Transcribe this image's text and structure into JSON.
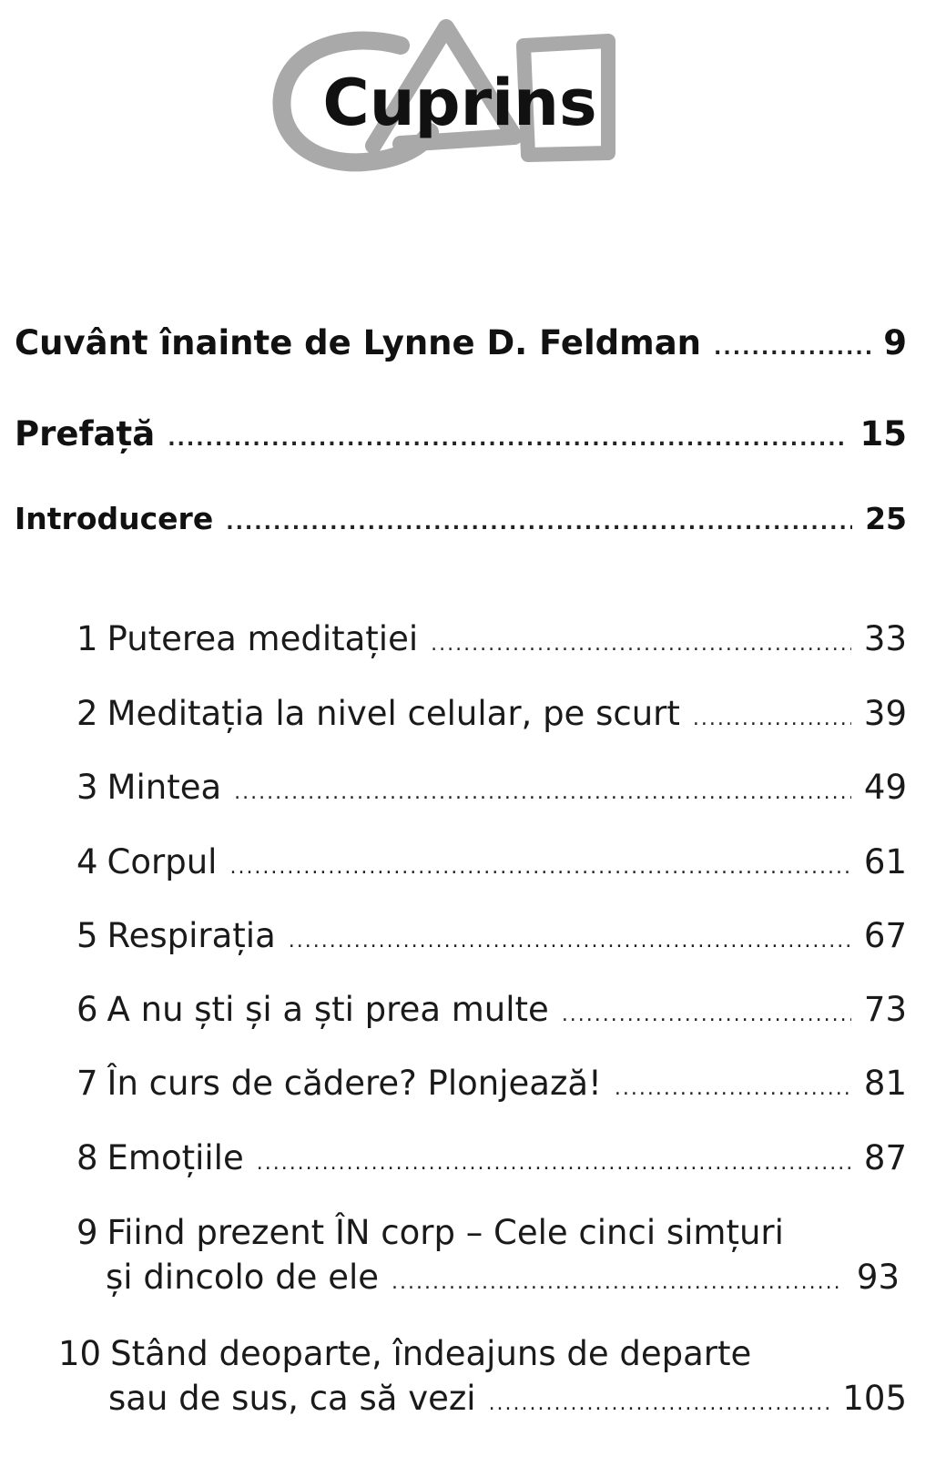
{
  "title": "Cuprins",
  "front_matter": [
    {
      "label": "Cuvânt înainte de Lynne D. Feldman",
      "page": "9"
    },
    {
      "label": "Prefață",
      "page": "15"
    },
    {
      "label": "Introducere",
      "page": "25"
    }
  ],
  "chapters": [
    {
      "number": "1",
      "title": "Puterea meditației",
      "page": "33"
    },
    {
      "number": "2",
      "title": "Meditația la nivel celular, pe scurt",
      "page": "39"
    },
    {
      "number": "3",
      "title": "Mintea",
      "page": "49"
    },
    {
      "number": "4",
      "title": "Corpul",
      "page": "61"
    },
    {
      "number": "5",
      "title": "Respirația",
      "page": "67"
    },
    {
      "number": "6",
      "title": "A nu ști și a ști prea multe",
      "page": "73"
    },
    {
      "number": "7",
      "title": "În curs de cădere? Plonjează!",
      "page": "81"
    },
    {
      "number": "8",
      "title": "Emoțiile",
      "page": "87"
    },
    {
      "number": "9",
      "title_line1": "Fiind prezent ÎN corp – Cele cinci simțuri",
      "title_line2": "și dincolo de ele",
      "page": "93"
    },
    {
      "number": "10",
      "title_line1": "Stând deoparte, îndeajuns de departe",
      "title_line2": "sau de sus, ca să vezi",
      "page": "105"
    }
  ]
}
